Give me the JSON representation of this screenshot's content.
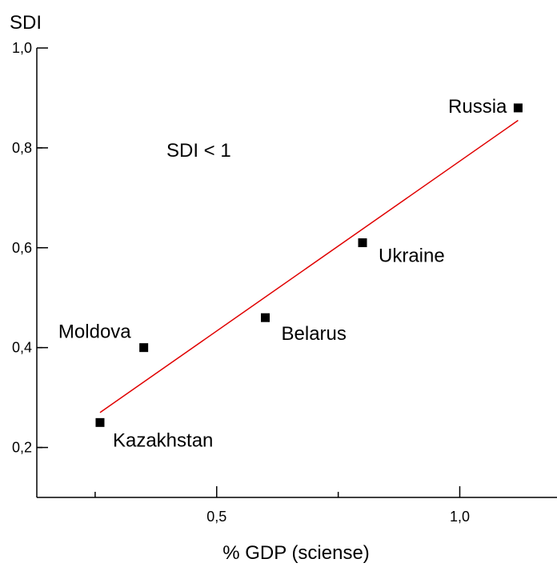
{
  "chart_data": {
    "type": "scatter",
    "ylabel": "SDI",
    "xlabel": "% GDP (sciense)",
    "annotation": "SDI < 1",
    "xlim": [
      0.13,
      1.2
    ],
    "ylim": [
      0.1,
      1.0
    ],
    "x_ticks": [
      {
        "value": 0.5,
        "label": "0,5"
      },
      {
        "value": 1.0,
        "label": "1,0"
      }
    ],
    "y_ticks": [
      {
        "value": 0.2,
        "label": "0,2"
      },
      {
        "value": 0.4,
        "label": "0,4"
      },
      {
        "value": 0.6,
        "label": "0,6"
      },
      {
        "value": 0.8,
        "label": "0,8"
      },
      {
        "value": 1.0,
        "label": "1,0"
      }
    ],
    "points": [
      {
        "label": "Kazakhstan",
        "x": 0.26,
        "y": 0.25
      },
      {
        "label": "Moldova",
        "x": 0.35,
        "y": 0.4
      },
      {
        "label": "Belarus",
        "x": 0.6,
        "y": 0.46
      },
      {
        "label": "Ukraine",
        "x": 0.8,
        "y": 0.61
      },
      {
        "label": "Russia",
        "x": 1.12,
        "y": 0.88
      }
    ],
    "trendline": {
      "x": [
        0.26,
        1.12
      ],
      "y": [
        0.27,
        0.855
      ],
      "color": "#e00000"
    },
    "grid": false,
    "marker_color": "#000000"
  }
}
